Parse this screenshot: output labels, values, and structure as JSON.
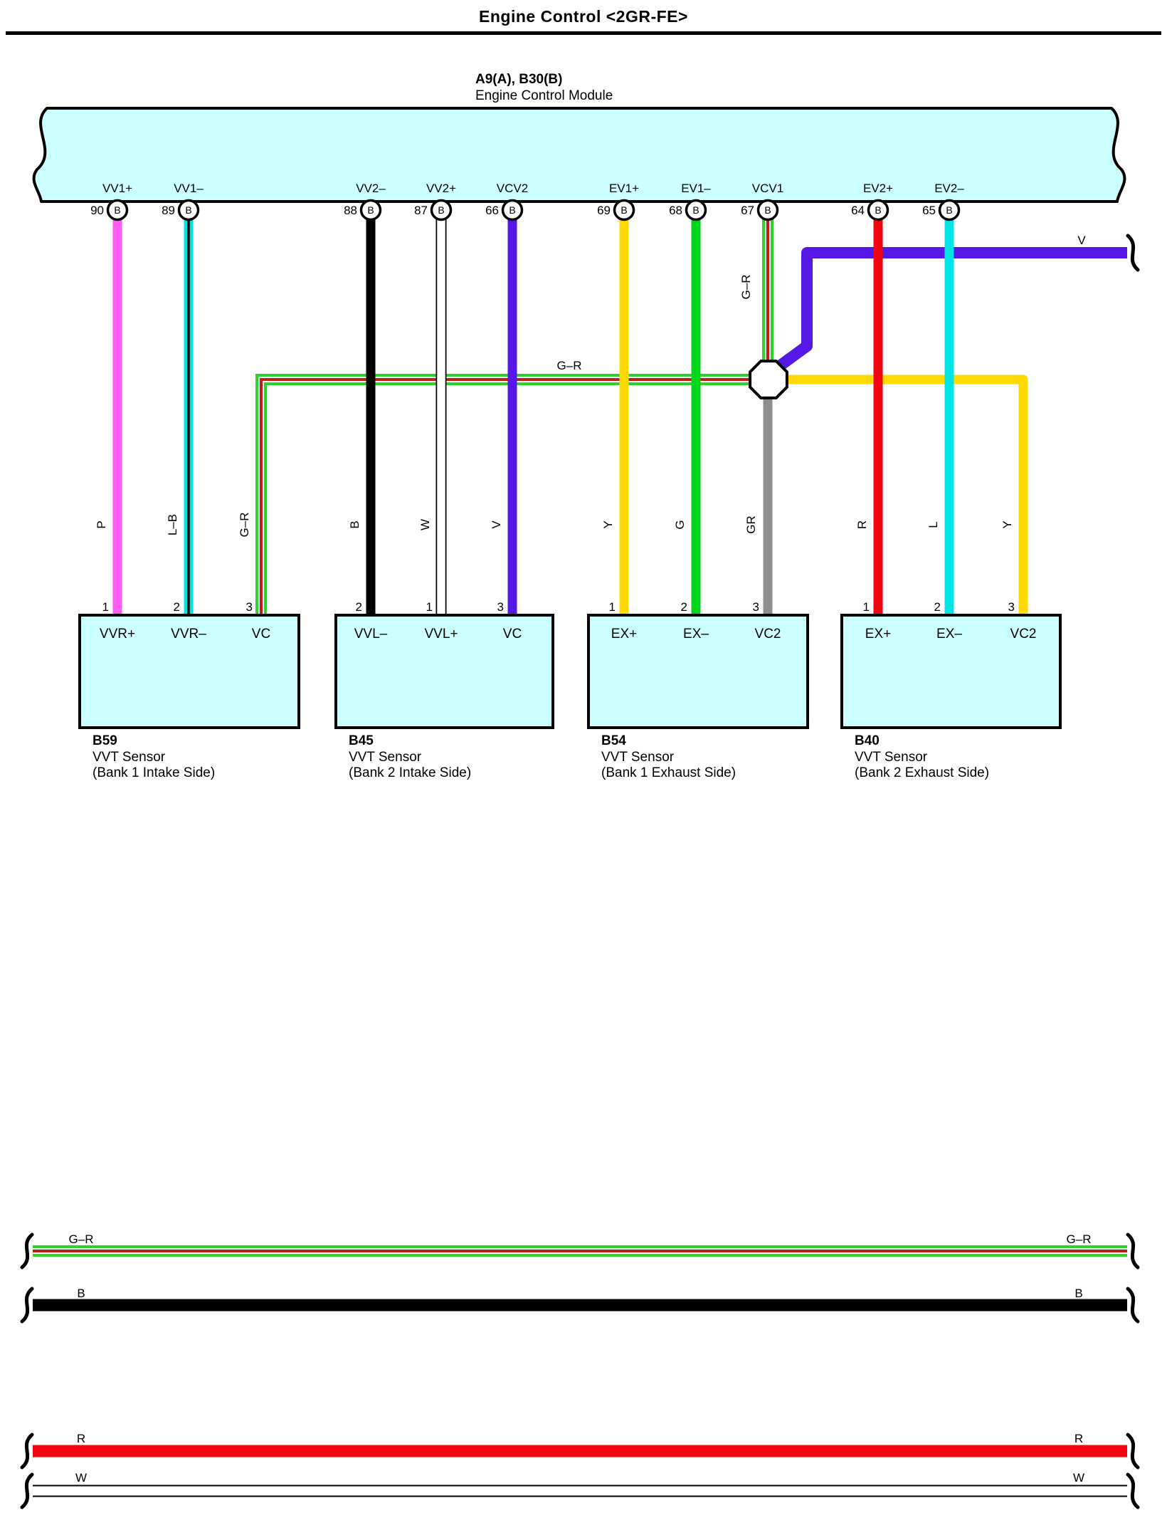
{
  "title": "Engine Control <2GR-FE>",
  "ecm": {
    "connector_code": "A9(A), B30(B)",
    "name": "Engine Control Module",
    "pin_letter": "B",
    "pins": [
      {
        "number": "90",
        "signal": "VV1+"
      },
      {
        "number": "89",
        "signal": "VV1–"
      },
      {
        "number": "88",
        "signal": "VV2–"
      },
      {
        "number": "87",
        "signal": "VV2+"
      },
      {
        "number": "66",
        "signal": "VCV2"
      },
      {
        "number": "69",
        "signal": "EV1+"
      },
      {
        "number": "68",
        "signal": "EV1–"
      },
      {
        "number": "67",
        "signal": "VCV1"
      },
      {
        "number": "64",
        "signal": "EV2+"
      },
      {
        "number": "65",
        "signal": "EV2–"
      }
    ]
  },
  "wire_codes": {
    "p": "P",
    "lb": "L–B",
    "gr_stripe": "G–R",
    "b": "B",
    "w": "W",
    "v": "V",
    "y": "Y",
    "g": "G",
    "gr_solid": "GR",
    "r": "R",
    "l": "L"
  },
  "junction": {
    "horizontal_label": "G–R",
    "vertical_label": "G–R"
  },
  "offpage": {
    "label": "V"
  },
  "sensors": [
    {
      "id": "B59",
      "name": "VVT Sensor",
      "location": "(Bank 1 Intake Side)",
      "terminals": [
        {
          "pin": "1",
          "label": "VVR+"
        },
        {
          "pin": "2",
          "label": "VVR–"
        },
        {
          "pin": "3",
          "label": "VC"
        }
      ]
    },
    {
      "id": "B45",
      "name": "VVT Sensor",
      "location": "(Bank 2 Intake Side)",
      "terminals": [
        {
          "pin": "2",
          "label": "VVL–"
        },
        {
          "pin": "1",
          "label": "VVL+"
        },
        {
          "pin": "3",
          "label": "VC"
        }
      ]
    },
    {
      "id": "B54",
      "name": "VVT Sensor",
      "location": "(Bank 1 Exhaust Side)",
      "terminals": [
        {
          "pin": "1",
          "label": "EX+"
        },
        {
          "pin": "2",
          "label": "EX–"
        },
        {
          "pin": "3",
          "label": "VC2"
        }
      ]
    },
    {
      "id": "B40",
      "name": "VVT Sensor",
      "location": "(Bank 2 Exhaust Side)",
      "terminals": [
        {
          "pin": "1",
          "label": "EX+"
        },
        {
          "pin": "2",
          "label": "EX–"
        },
        {
          "pin": "3",
          "label": "VC2"
        }
      ]
    }
  ],
  "bottom_wires": [
    {
      "label_left": "G–R",
      "label_right": "G–R"
    },
    {
      "label_left": "B",
      "label_right": "B"
    },
    {
      "label_left": "R",
      "label_right": "R"
    },
    {
      "label_left": "W",
      "label_right": "W"
    }
  ],
  "palette": {
    "box_fill": "#ccffff",
    "outline": "#000000",
    "pink": "#ff5cf4",
    "cyan": "#00e4e4",
    "black": "#000000",
    "white": "#ffffff",
    "violet": "#5618e6",
    "yellow": "#ffd900",
    "green": "#00d51d",
    "stripe_green": "#2bd32b",
    "stripe_red": "#bc1f16",
    "gray": "#8e8e8e",
    "red": "#f10510"
  }
}
